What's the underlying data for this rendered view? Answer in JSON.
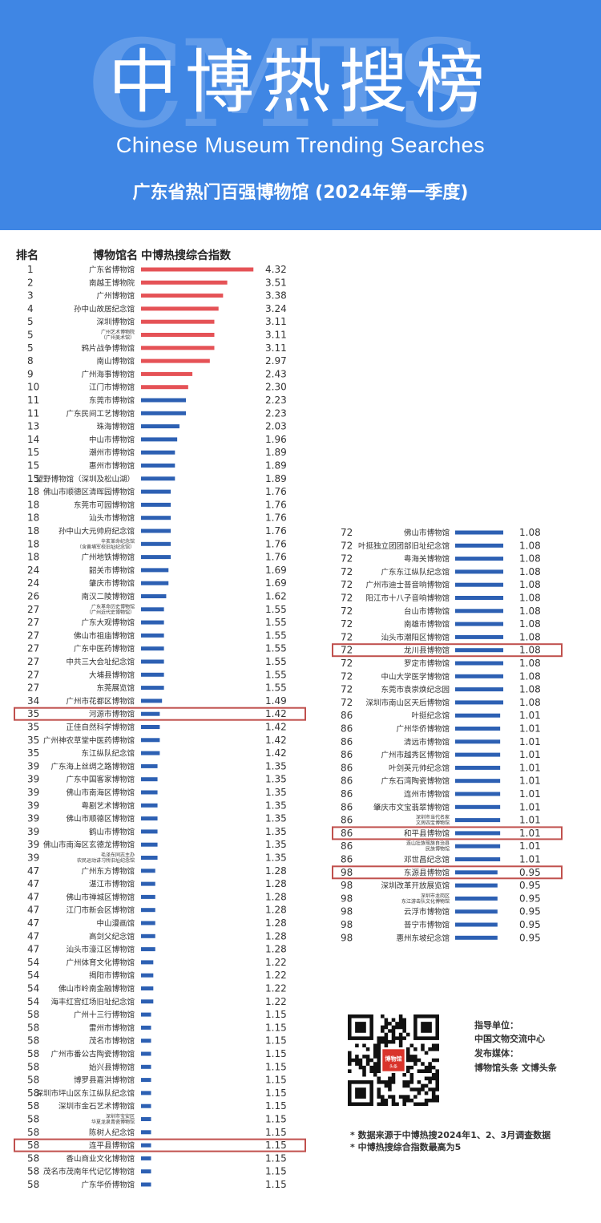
{
  "header": {
    "watermark": "CMTS",
    "title": "中博热搜榜",
    "subtitle_en": "Chinese Museum Trending Searches",
    "subtitle": "广东省热门百强博物馆 (2024年第一季度)"
  },
  "columns": {
    "rank": "排名",
    "name": "博物馆名",
    "index": "中博热搜综合指数"
  },
  "chart_data": {
    "type": "bar",
    "orientation": "horizontal",
    "xlim": [
      0,
      5
    ],
    "colors": {
      "top": "#e55256",
      "rest": "#2d60b3"
    },
    "entries_left": [
      {
        "rank": "1",
        "name": "广东省博物馆",
        "value": 4.32
      },
      {
        "rank": "2",
        "name": "南越王博物院",
        "value": 3.51
      },
      {
        "rank": "3",
        "name": "广州博物馆",
        "value": 3.38
      },
      {
        "rank": "4",
        "name": "孙中山故居纪念馆",
        "value": 3.24
      },
      {
        "rank": "5",
        "name": "深圳博物馆",
        "value": 3.11
      },
      {
        "rank": "5",
        "name": "广州艺术博物院",
        "name2": "（广州美术馆）",
        "value": 3.11
      },
      {
        "rank": "5",
        "name": "鸦片战争博物馆",
        "value": 3.11
      },
      {
        "rank": "8",
        "name": "南山博物馆",
        "value": 2.97
      },
      {
        "rank": "9",
        "name": "广州海事博物馆",
        "value": 2.43
      },
      {
        "rank": "10",
        "name": "江门市博物馆",
        "value": 2.3
      },
      {
        "rank": "11",
        "name": "东莞市博物馆",
        "value": 2.23
      },
      {
        "rank": "11",
        "name": "广东民间工艺博物馆",
        "value": 2.23
      },
      {
        "rank": "13",
        "name": "珠海博物馆",
        "value": 2.03
      },
      {
        "rank": "14",
        "name": "中山市博物馆",
        "value": 1.96
      },
      {
        "rank": "15",
        "name": "潮州市博物馆",
        "value": 1.89
      },
      {
        "rank": "15",
        "name": "惠州市博物馆",
        "value": 1.89
      },
      {
        "rank": "15",
        "name": "望野博物馆（深圳及松山湖）",
        "value": 1.89
      },
      {
        "rank": "18",
        "name": "佛山市顺德区清晖园博物馆",
        "value": 1.76
      },
      {
        "rank": "18",
        "name": "东莞市可园博物馆",
        "value": 1.76
      },
      {
        "rank": "18",
        "name": "汕头市博物馆",
        "value": 1.76
      },
      {
        "rank": "18",
        "name": "孙中山大元帅府纪念馆",
        "value": 1.76
      },
      {
        "rank": "18",
        "name": "辛亥革命纪念馆",
        "name2": "（含黄埔军校旧址纪念馆）",
        "value": 1.76
      },
      {
        "rank": "18",
        "name": "广州地铁博物馆",
        "value": 1.76
      },
      {
        "rank": "24",
        "name": "韶关市博物馆",
        "value": 1.69
      },
      {
        "rank": "24",
        "name": "肇庆市博物馆",
        "value": 1.69
      },
      {
        "rank": "26",
        "name": "南汉二陵博物馆",
        "value": 1.62
      },
      {
        "rank": "27",
        "name": "广东革命历史博物馆",
        "name2": "（广州近代史博物馆）",
        "value": 1.55
      },
      {
        "rank": "27",
        "name": "广东大观博物馆",
        "value": 1.55
      },
      {
        "rank": "27",
        "name": "佛山市祖庙博物馆",
        "value": 1.55
      },
      {
        "rank": "27",
        "name": "广东中医药博物馆",
        "value": 1.55
      },
      {
        "rank": "27",
        "name": "中共三大会址纪念馆",
        "value": 1.55
      },
      {
        "rank": "27",
        "name": "大埔县博物馆",
        "value": 1.55
      },
      {
        "rank": "27",
        "name": "东莞展览馆",
        "value": 1.55
      },
      {
        "rank": "34",
        "name": "广州市花都区博物馆",
        "value": 1.49
      },
      {
        "rank": "35",
        "name": "河源市博物馆",
        "value": 1.42,
        "highlight": true
      },
      {
        "rank": "35",
        "name": "正佳自然科学博物馆",
        "value": 1.42
      },
      {
        "rank": "35",
        "name": "广州神农草堂中医药博物馆",
        "value": 1.42
      },
      {
        "rank": "35",
        "name": "东江纵队纪念馆",
        "value": 1.42
      },
      {
        "rank": "39",
        "name": "广东海上丝绸之路博物馆",
        "value": 1.35
      },
      {
        "rank": "39",
        "name": "广东中国客家博物馆",
        "value": 1.35
      },
      {
        "rank": "39",
        "name": "佛山市南海区博物馆",
        "value": 1.35
      },
      {
        "rank": "39",
        "name": "粤剧艺术博物馆",
        "value": 1.35
      },
      {
        "rank": "39",
        "name": "佛山市顺德区博物馆",
        "value": 1.35
      },
      {
        "rank": "39",
        "name": "鹤山市博物馆",
        "value": 1.35
      },
      {
        "rank": "39",
        "name": "佛山市南海区玄德龙博物馆",
        "value": 1.35
      },
      {
        "rank": "39",
        "name": "毛泽东同志主办",
        "name2": "农民运动讲习所旧址纪念馆",
        "value": 1.35
      },
      {
        "rank": "47",
        "name": "广州东方博物馆",
        "value": 1.28
      },
      {
        "rank": "47",
        "name": "湛江市博物馆",
        "value": 1.28
      },
      {
        "rank": "47",
        "name": "佛山市禅城区博物馆",
        "value": 1.28
      },
      {
        "rank": "47",
        "name": "江门市新会区博物馆",
        "value": 1.28
      },
      {
        "rank": "47",
        "name": "中山漫画馆",
        "value": 1.28
      },
      {
        "rank": "47",
        "name": "高剑父纪念馆",
        "value": 1.28
      },
      {
        "rank": "47",
        "name": "汕头市濠江区博物馆",
        "value": 1.28
      },
      {
        "rank": "54",
        "name": "广州体育文化博物馆",
        "value": 1.22
      },
      {
        "rank": "54",
        "name": "揭阳市博物馆",
        "value": 1.22
      },
      {
        "rank": "54",
        "name": "佛山市岭南金融博物馆",
        "value": 1.22
      },
      {
        "rank": "54",
        "name": "海丰红宫红场旧址纪念馆",
        "value": 1.22
      },
      {
        "rank": "58",
        "name": "广州十三行博物馆",
        "value": 1.15
      },
      {
        "rank": "58",
        "name": "雷州市博物馆",
        "value": 1.15
      },
      {
        "rank": "58",
        "name": "茂名市博物馆",
        "value": 1.15
      },
      {
        "rank": "58",
        "name": "广州市番公古陶瓷博物馆",
        "value": 1.15
      },
      {
        "rank": "58",
        "name": "始兴县博物馆",
        "value": 1.15
      },
      {
        "rank": "58",
        "name": "博罗县嘉洪博物馆",
        "value": 1.15
      },
      {
        "rank": "58",
        "name": "深圳市坪山区东江纵队纪念馆",
        "value": 1.15
      },
      {
        "rank": "58",
        "name": "深圳市金石艺术博物馆",
        "value": 1.15
      },
      {
        "rank": "58",
        "name": "深圳市宝安区",
        "name2": "华夏龙泉青瓷博物馆",
        "value": 1.15
      },
      {
        "rank": "58",
        "name": "陈树人纪念馆",
        "value": 1.15
      },
      {
        "rank": "58",
        "name": "连平县博物馆",
        "value": 1.15,
        "highlight": true
      },
      {
        "rank": "58",
        "name": "香山商业文化博物馆",
        "value": 1.15
      },
      {
        "rank": "58",
        "name": "茂名市茂南年代记忆博物馆",
        "value": 1.15
      },
      {
        "rank": "58",
        "name": "广东华侨博物馆",
        "value": 1.15
      }
    ],
    "entries_right": [
      {
        "rank": "72",
        "name": "佛山市博物馆",
        "value": 1.08
      },
      {
        "rank": "72",
        "name": "叶挺独立团团部旧址纪念馆",
        "value": 1.08
      },
      {
        "rank": "72",
        "name": "粤海关博物馆",
        "value": 1.08
      },
      {
        "rank": "72",
        "name": "广东东江纵队纪念馆",
        "value": 1.08
      },
      {
        "rank": "72",
        "name": "广州市迪士普音响博物馆",
        "value": 1.08
      },
      {
        "rank": "72",
        "name": "阳江市十八子音响博物馆",
        "value": 1.08
      },
      {
        "rank": "72",
        "name": "台山市博物馆",
        "value": 1.08
      },
      {
        "rank": "72",
        "name": "南雄市博物馆",
        "value": 1.08
      },
      {
        "rank": "72",
        "name": "汕头市潮阳区博物馆",
        "value": 1.08
      },
      {
        "rank": "72",
        "name": "龙川县博物馆",
        "value": 1.08,
        "highlight": true
      },
      {
        "rank": "72",
        "name": "罗定市博物馆",
        "value": 1.08
      },
      {
        "rank": "72",
        "name": "中山大学医学博物馆",
        "value": 1.08
      },
      {
        "rank": "72",
        "name": "东莞市袁崇焕纪念园",
        "value": 1.08
      },
      {
        "rank": "72",
        "name": "深圳市南山区天后博物馆",
        "value": 1.08
      },
      {
        "rank": "86",
        "name": "叶挺纪念馆",
        "value": 1.01
      },
      {
        "rank": "86",
        "name": "广州华侨博物馆",
        "value": 1.01
      },
      {
        "rank": "86",
        "name": "清远市博物馆",
        "value": 1.01
      },
      {
        "rank": "86",
        "name": "广州市越秀区博物馆",
        "value": 1.01
      },
      {
        "rank": "86",
        "name": "叶剑英元帅纪念馆",
        "value": 1.01
      },
      {
        "rank": "86",
        "name": "广东石湾陶瓷博物馆",
        "value": 1.01
      },
      {
        "rank": "86",
        "name": "连州市博物馆",
        "value": 1.01
      },
      {
        "rank": "86",
        "name": "肇庆市文宝翡翠博物馆",
        "value": 1.01
      },
      {
        "rank": "86",
        "name": "深圳市当代名家",
        "name2": "文房四宝博物馆",
        "value": 1.01
      },
      {
        "rank": "86",
        "name": "和平县博物馆",
        "value": 1.01,
        "highlight": true
      },
      {
        "rank": "86",
        "name": "连山壮族瑶族自治县",
        "name2": "民族博物馆",
        "value": 1.01
      },
      {
        "rank": "86",
        "name": "邓世昌纪念馆",
        "value": 1.01
      },
      {
        "rank": "98",
        "name": "东源县博物馆",
        "value": 0.95,
        "highlight": true
      },
      {
        "rank": "98",
        "name": "深圳改革开放展览馆",
        "value": 0.95
      },
      {
        "rank": "98",
        "name": "深圳市龙岗区",
        "name2": "东江游击队文化博物馆",
        "value": 0.95
      },
      {
        "rank": "98",
        "name": "云浮市博物馆",
        "value": 0.95
      },
      {
        "rank": "98",
        "name": "普宁市博物馆",
        "value": 0.95
      },
      {
        "rank": "98",
        "name": "惠州东坡纪念馆",
        "value": 0.95
      }
    ]
  },
  "qr": {
    "logo_text": "博物馆",
    "logo_sub": "头条"
  },
  "info": {
    "guide_label": "指导单位：",
    "guide_org": "中国文物交流中心",
    "media_label": "发布媒体：",
    "media_names": "博物馆头条 文博头条"
  },
  "notes": [
    "* 数据来源于中博热搜2024年1、2、3月调查数据",
    "* 中博热搜综合指数最高为5"
  ]
}
